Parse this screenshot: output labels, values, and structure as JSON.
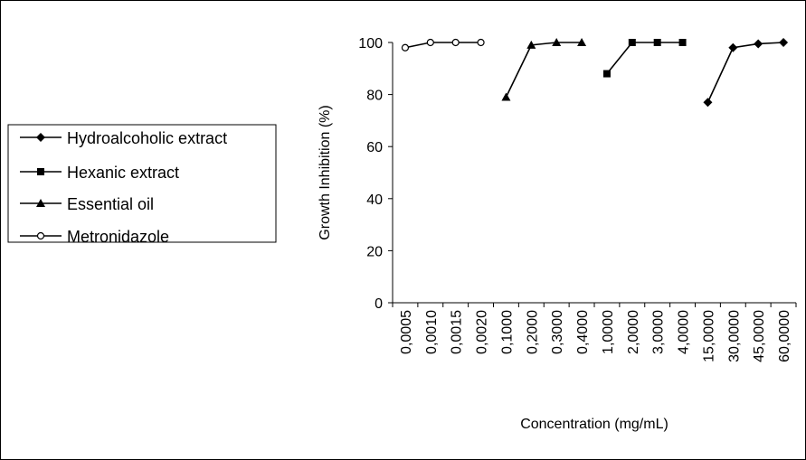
{
  "chart_data": {
    "type": "line",
    "title": "",
    "xlabel": "Concentration (mg/mL)",
    "ylabel": "Growth Inhibition (%)",
    "ylim": [
      0,
      100
    ],
    "yticks": [
      "0",
      "20",
      "40",
      "60",
      "80",
      "100"
    ],
    "categories": [
      "0,0005",
      "0,0010",
      "0,0015",
      "0,0020",
      "0,1000",
      "0,2000",
      "0,3000",
      "0,4000",
      "1,0000",
      "2,0000",
      "3,0000",
      "4,0000",
      "15,0000",
      "30,0000",
      "45,0000",
      "60,0000"
    ],
    "grid": false,
    "legend_position": "left",
    "series": [
      {
        "name": "Hydroalcoholic extract",
        "marker": "diamond",
        "values": [
          null,
          null,
          null,
          null,
          null,
          null,
          null,
          null,
          null,
          null,
          null,
          null,
          77,
          98,
          99.5,
          100
        ]
      },
      {
        "name": "Hexanic extract",
        "marker": "square",
        "values": [
          null,
          null,
          null,
          null,
          null,
          null,
          null,
          null,
          88,
          100,
          100,
          100,
          null,
          null,
          null,
          null
        ]
      },
      {
        "name": "Essential oil",
        "marker": "triangle",
        "values": [
          null,
          null,
          null,
          null,
          79,
          99,
          100,
          100,
          null,
          null,
          null,
          null,
          null,
          null,
          null,
          null
        ]
      },
      {
        "name": "Metronidazole",
        "marker": "circle-open",
        "values": [
          98,
          100,
          100,
          100,
          null,
          null,
          null,
          null,
          null,
          null,
          null,
          null,
          null,
          null,
          null,
          null
        ]
      }
    ]
  }
}
